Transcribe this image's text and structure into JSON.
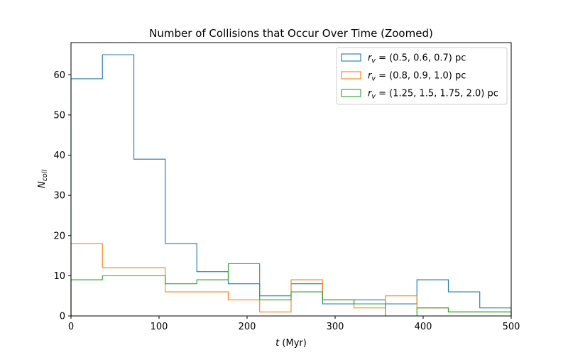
{
  "chart_data": {
    "type": "histogram-step",
    "title": "Number of Collisions that Occur Over Time (Zoomed)",
    "xlabel": {
      "var": "t",
      "unit": " (Myr)"
    },
    "ylabel": {
      "var": "N",
      "sub": "coll"
    },
    "xlim": [
      0,
      500
    ],
    "ylim": [
      0,
      68
    ],
    "xticks": [
      0,
      100,
      200,
      300,
      400,
      500
    ],
    "yticks": [
      0,
      10,
      20,
      30,
      40,
      50,
      60
    ],
    "bin_edges": [
      0,
      35.7,
      71.4,
      107.1,
      142.9,
      178.6,
      214.3,
      250,
      285.7,
      321.4,
      357.1,
      392.9,
      428.6,
      464.3,
      500
    ],
    "legend_position": "top-right",
    "series": [
      {
        "name": {
          "var": "r",
          "sub": "v",
          "rest": " = (0.5, 0.6, 0.7) pc"
        },
        "color": "#1f77b4",
        "values": [
          59,
          65,
          39,
          18,
          11,
          8,
          5,
          8,
          3,
          4,
          3,
          9,
          6,
          2
        ]
      },
      {
        "name": {
          "var": "r",
          "sub": "v",
          "rest": " = (0.8, 0.9, 1.0) pc"
        },
        "color": "#ff7f0e",
        "values": [
          18,
          12,
          12,
          6,
          6,
          4,
          1,
          9,
          4,
          2,
          5,
          2,
          1,
          1
        ]
      },
      {
        "name": {
          "var": "r",
          "sub": "v",
          "rest": " = (1.25, 1.5, 1.75, 2.0) pc"
        },
        "color": "#2ca02c",
        "values": [
          9,
          10,
          10,
          8,
          9,
          13,
          4,
          6,
          4,
          3,
          0,
          2,
          1,
          1
        ]
      }
    ]
  }
}
